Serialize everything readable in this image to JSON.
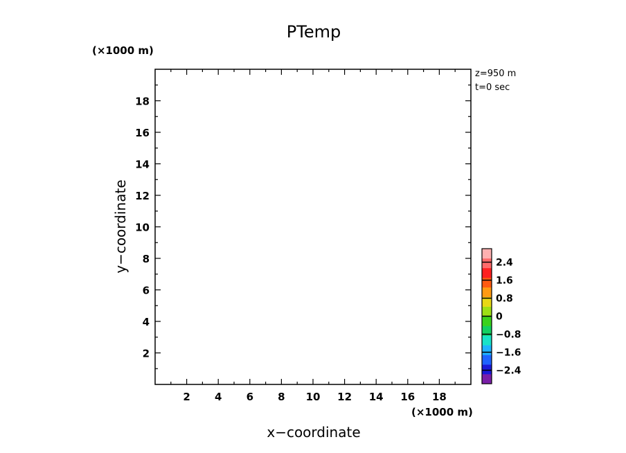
{
  "chart_data": {
    "type": "heatmap",
    "title": "PTemp",
    "xlabel": "x−coordinate",
    "ylabel": "y−coordinate",
    "x_unit": "(×1000 m)",
    "y_unit": "(×1000 m)",
    "xlim": [
      0,
      20
    ],
    "ylim": [
      0,
      20
    ],
    "x_ticks": [
      "2",
      "4",
      "6",
      "8",
      "10",
      "12",
      "14",
      "16",
      "18"
    ],
    "y_ticks": [
      "2",
      "4",
      "6",
      "8",
      "10",
      "12",
      "14",
      "16",
      "18"
    ],
    "annotations": [
      "z=950 m",
      "t=0 sec"
    ],
    "field": "empty",
    "colorbar": {
      "labels": [
        "2.4",
        "1.6",
        "0.8",
        "0",
        "−0.8",
        "−1.6",
        "−2.4"
      ],
      "values": [
        2.4,
        1.6,
        0.8,
        0,
        -0.8,
        -1.6,
        -2.4
      ],
      "range": [
        -3.0,
        3.0
      ],
      "colors": [
        "#7a1fa8",
        "#1a1ad8",
        "#1e63ff",
        "#1fb3ff",
        "#19e3c8",
        "#12d060",
        "#3ad21c",
        "#9ee016",
        "#e8d816",
        "#ff9a12",
        "#ff5a10",
        "#ff2020",
        "#ff6a6a",
        "#ffb0b0"
      ]
    }
  }
}
